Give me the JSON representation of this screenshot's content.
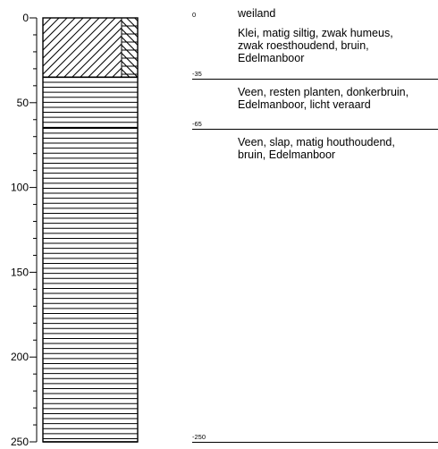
{
  "profile": {
    "depth_unit_hint": "cm",
    "axis": {
      "min": 0,
      "max": 250,
      "major_ticks": [
        0,
        50,
        100,
        150,
        200,
        250
      ],
      "major_tick_labels": [
        "0",
        "50",
        "100",
        "150",
        "200",
        "250"
      ],
      "minor_step": 10
    },
    "surface_label": "weiland",
    "layers": [
      {
        "id": "clay",
        "top": 0,
        "bottom": 35,
        "top_label": "0",
        "bottom_label": "-35",
        "description": "Klei, matig siltig, zwak humeus,\nzwak roesthoudend, bruin,\nEdelmanboor",
        "pattern": "diagonal-hatch-with-sidebar"
      },
      {
        "id": "peat-1",
        "top": 35,
        "bottom": 65,
        "top_label": "-35",
        "bottom_label": "-65",
        "description": "Veen, resten planten, donkerbruin,\nEdelmanboor, licht veraard",
        "pattern": "horizontal-lines"
      },
      {
        "id": "peat-2",
        "top": 65,
        "bottom": 250,
        "top_label": "-65",
        "bottom_label": "-250",
        "description": "Veen, slap, matig houthoudend,\nbruin, Edelmanboor",
        "pattern": "horizontal-lines"
      }
    ],
    "end_label": "-250"
  }
}
